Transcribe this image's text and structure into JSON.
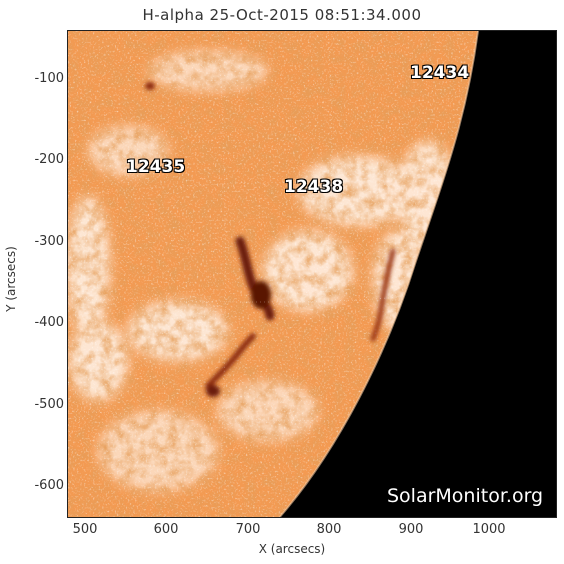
{
  "title": "H-alpha 25-Oct-2015 08:51:34.000",
  "axes": {
    "xlabel": "X (arcsecs)",
    "ylabel": "Y (arcsecs)",
    "xticks": [
      "500",
      "600",
      "700",
      "800",
      "900",
      "1000"
    ],
    "yticks": [
      "-100",
      "-200",
      "-300",
      "-400",
      "-500",
      "-600"
    ]
  },
  "regions": [
    "12435",
    "12438",
    "12434"
  ],
  "watermark": "SolarMonitor.org",
  "colors": {
    "disk_base": "#f39a52",
    "disk_dark": "#c9561a",
    "plage": "#fff4ea",
    "filament": "#6a1a08",
    "space": "#000000"
  }
}
